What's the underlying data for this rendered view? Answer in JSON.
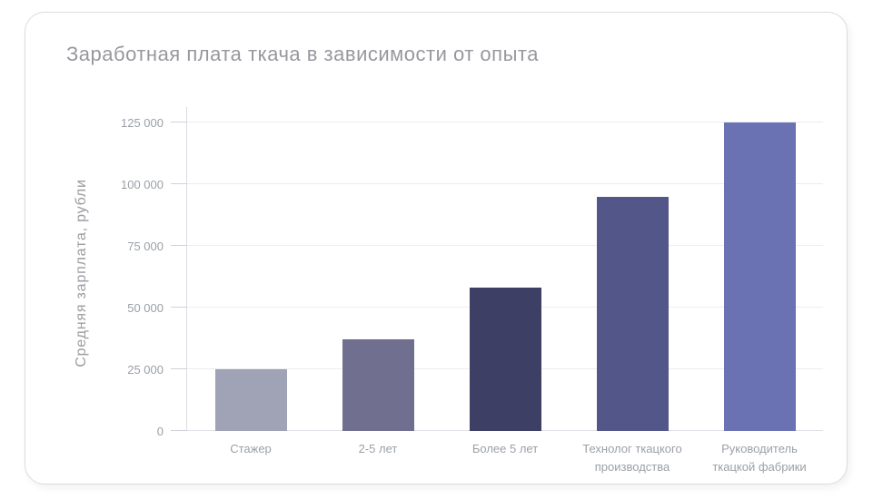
{
  "chart_data": {
    "type": "bar",
    "title": "Заработная плата ткача в зависимости от опыта",
    "ylabel": "Средняя зарплата, рубли",
    "xlabel": "",
    "categories": [
      "Стажер",
      "2-5 лет",
      "Более 5 лет",
      "Технолог ткацкого производства",
      "Руководитель ткацкой фабрики"
    ],
    "values": [
      25000,
      37000,
      58000,
      95000,
      125000
    ],
    "ylim": [
      0,
      125000
    ],
    "ytick_step": 25000,
    "ytick_labels": [
      "0",
      "25 000",
      "50 000",
      "75 000",
      "100 000",
      "125 000"
    ],
    "grid": true,
    "legend": false,
    "bar_colors": [
      "#a0a2b5",
      "#706f90",
      "#3e3f64",
      "#525689",
      "#6a72b3"
    ],
    "text_color": "#9b9ba1",
    "grid_color": "#ededf2",
    "axis_color": "#d9dce2"
  }
}
